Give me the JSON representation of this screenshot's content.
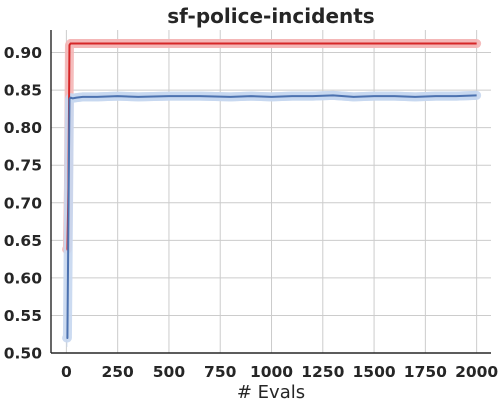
{
  "chart_data": {
    "type": "line",
    "title": "sf-police-incidents",
    "xlabel": "# Evals",
    "ylabel": "",
    "xlim": [
      -75,
      2070
    ],
    "ylim": [
      0.5,
      0.93
    ],
    "xticks": [
      0,
      250,
      500,
      750,
      1000,
      1250,
      1500,
      1750,
      2000
    ],
    "yticks": [
      0.5,
      0.55,
      0.6,
      0.65,
      0.7,
      0.75,
      0.8,
      0.85,
      0.9
    ],
    "xtick_labels": [
      "0",
      "250",
      "500",
      "750",
      "1000",
      "1250",
      "1500",
      "1750",
      "2000"
    ],
    "ytick_labels": [
      "0.50",
      "0.55",
      "0.60",
      "0.65",
      "0.70",
      "0.75",
      "0.80",
      "0.85",
      "0.90"
    ],
    "grid": true,
    "series": [
      {
        "color": "#d62728",
        "band_color": "#f4b6b6",
        "x": [
          1,
          5,
          10,
          15,
          20,
          30,
          50,
          100,
          200,
          500,
          1000,
          1500,
          2000
        ],
        "y": [
          0.638,
          0.638,
          0.72,
          0.91,
          0.912,
          0.912,
          0.912,
          0.912,
          0.912,
          0.912,
          0.912,
          0.912,
          0.912
        ],
        "band": [
          0.01,
          0.01,
          0.012,
          0.008,
          0.006,
          0.006,
          0.006,
          0.006,
          0.006,
          0.006,
          0.006,
          0.006,
          0.006
        ]
      },
      {
        "color": "#4c72b0",
        "band_color": "#c6d7f0",
        "x": [
          1,
          5,
          10,
          15,
          20,
          30,
          50,
          80,
          150,
          250,
          350,
          500,
          650,
          800,
          900,
          1000,
          1100,
          1200,
          1300,
          1400,
          1500,
          1600,
          1700,
          1800,
          1900,
          2000
        ],
        "y": [
          0.52,
          0.52,
          0.68,
          0.838,
          0.84,
          0.839,
          0.84,
          0.841,
          0.841,
          0.842,
          0.841,
          0.842,
          0.842,
          0.841,
          0.842,
          0.841,
          0.842,
          0.842,
          0.843,
          0.841,
          0.842,
          0.842,
          0.841,
          0.842,
          0.842,
          0.843
        ],
        "band": [
          0.012,
          0.012,
          0.016,
          0.008,
          0.006,
          0.006,
          0.006,
          0.006,
          0.006,
          0.006,
          0.006,
          0.006,
          0.006,
          0.006,
          0.006,
          0.006,
          0.006,
          0.006,
          0.006,
          0.006,
          0.006,
          0.006,
          0.006,
          0.006,
          0.006,
          0.006
        ]
      }
    ]
  }
}
